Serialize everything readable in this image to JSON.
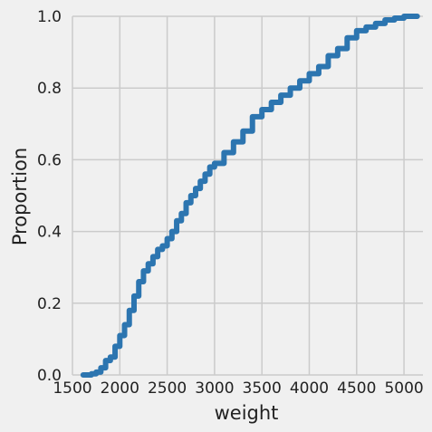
{
  "chart_data": {
    "type": "line",
    "title": "",
    "xlabel": "weight",
    "ylabel": "Proportion",
    "xlim": [
      1500,
      5200
    ],
    "ylim": [
      0,
      1
    ],
    "x_ticks": [
      1500,
      2000,
      2500,
      3000,
      3500,
      4000,
      4500,
      5000
    ],
    "y_ticks": [
      0.0,
      0.2,
      0.4,
      0.6,
      0.8,
      1.0
    ],
    "x_tick_labels": [
      "1500",
      "2000",
      "2500",
      "3000",
      "3500",
      "4000",
      "4500",
      "5000"
    ],
    "y_tick_labels": [
      "0.0",
      "0.2",
      "0.4",
      "0.6",
      "0.8",
      "1.0"
    ],
    "grid": true,
    "series": [
      {
        "color": "#2c75b0",
        "x": [
          1613,
          1700,
          1750,
          1800,
          1850,
          1900,
          1950,
          2000,
          2050,
          2100,
          2150,
          2200,
          2250,
          2300,
          2350,
          2400,
          2450,
          2500,
          2550,
          2600,
          2650,
          2700,
          2750,
          2800,
          2850,
          2900,
          2950,
          3000,
          3100,
          3200,
          3300,
          3400,
          3500,
          3600,
          3700,
          3800,
          3900,
          4000,
          4100,
          4200,
          4300,
          4400,
          4500,
          4600,
          4700,
          4800,
          4900,
          5000,
          5140
        ],
        "y": [
          0.0,
          0.003,
          0.008,
          0.02,
          0.04,
          0.05,
          0.08,
          0.11,
          0.14,
          0.18,
          0.22,
          0.26,
          0.29,
          0.31,
          0.33,
          0.35,
          0.36,
          0.38,
          0.4,
          0.43,
          0.45,
          0.48,
          0.5,
          0.52,
          0.54,
          0.56,
          0.58,
          0.59,
          0.62,
          0.65,
          0.68,
          0.72,
          0.74,
          0.76,
          0.78,
          0.8,
          0.82,
          0.84,
          0.86,
          0.89,
          0.91,
          0.94,
          0.96,
          0.97,
          0.98,
          0.99,
          0.995,
          1.0,
          1.0
        ]
      }
    ]
  }
}
